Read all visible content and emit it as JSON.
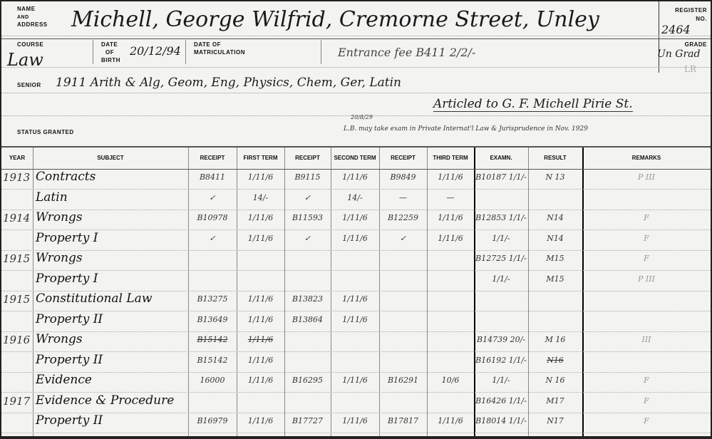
{
  "labels": {
    "name": "Name",
    "and": "and",
    "address": "Address",
    "register": "Register",
    "no": "No.",
    "course": "Course",
    "date": "Date",
    "of": "of",
    "birth": "Birth",
    "date_of": "Date of",
    "matriculation": "Matriculation",
    "grade": "Grade",
    "senior": "Senior",
    "status_granted": "Status Granted"
  },
  "record": {
    "name_address": "Michell, George Wilfrid, Cremorne Street, Unley",
    "register_no": "2464",
    "course": "Law",
    "date_of_birth": "20/12/94",
    "entrance_fee": "Entrance fee B411 2/2/-",
    "grade": "Un Grad",
    "grade_note": "LR",
    "senior": "1911 Arith & Alg, Geom, Eng, Physics, Chem, Ger, Latin",
    "articled": "Articled to G. F. Michell Pirie St.",
    "status_fraction": "20/8/29",
    "status_note": "L.B. may take exam in Private Internat'l Law & Jurisprudence in Nov. 1929"
  },
  "table": {
    "headers": [
      "Year",
      "Subject",
      "Receipt",
      "First Term",
      "Receipt",
      "Second Term",
      "Receipt",
      "Third Term",
      "Examn.",
      "Result",
      "Remarks"
    ],
    "rows": [
      [
        "1913",
        "Contracts",
        "B8411",
        "1/11/6",
        "B9115",
        "1/11/6",
        "B9849",
        "1/11/6",
        "B10187 1/1/-",
        "N 13",
        "P III"
      ],
      [
        "",
        "Latin",
        "✓",
        "14/-",
        "✓",
        "14/-",
        "—",
        "—",
        "",
        "",
        ""
      ],
      [
        "1914",
        "Wrongs",
        "B10978",
        "1/11/6",
        "B11593",
        "1/11/6",
        "B12259",
        "1/11/6",
        "B12853 1/1/-",
        "N14",
        "F"
      ],
      [
        "",
        "Property I",
        "✓",
        "1/11/6",
        "✓",
        "1/11/6",
        "✓",
        "1/11/6",
        "1/1/-",
        "N14",
        "F"
      ],
      [
        "1915",
        "Wrongs",
        "",
        "",
        "",
        "",
        "",
        "",
        "B12725 1/1/-",
        "M15",
        "F"
      ],
      [
        "",
        "Property I",
        "",
        "",
        "",
        "",
        "",
        "",
        "1/1/-",
        "M15",
        "P III"
      ],
      [
        "1915",
        "Constitutional Law",
        "B13275",
        "1/11/6",
        "B13823",
        "1/11/6",
        "",
        "",
        "",
        "",
        ""
      ],
      [
        "",
        "Property II",
        "B13649",
        "1/11/6",
        "B13864",
        "1/11/6",
        "",
        "",
        "",
        "",
        ""
      ],
      [
        "1916",
        "Wrongs",
        "B15142",
        "1/11/6",
        "",
        "",
        "",
        "",
        "B14739 20/-",
        "M 16",
        "III"
      ],
      [
        "",
        "Property II",
        "B15142",
        "1/11/6",
        "",
        "",
        "",
        "",
        "B16192 1/1/-",
        "N16",
        ""
      ],
      [
        "",
        "Evidence",
        "16000",
        "1/11/6",
        "B16295",
        "1/11/6",
        "B16291",
        "10/6",
        "1/1/-",
        "N 16",
        "F"
      ],
      [
        "1917",
        "Evidence & Procedure",
        "",
        "",
        "",
        "",
        "",
        "",
        "B16426 1/1/-",
        "M17",
        "F"
      ],
      [
        "",
        "Property II",
        "B16979",
        "1/11/6",
        "B17727",
        "1/11/6",
        "B17817",
        "1/11/6",
        "B18014 1/1/-",
        "N17",
        "F"
      ]
    ]
  }
}
